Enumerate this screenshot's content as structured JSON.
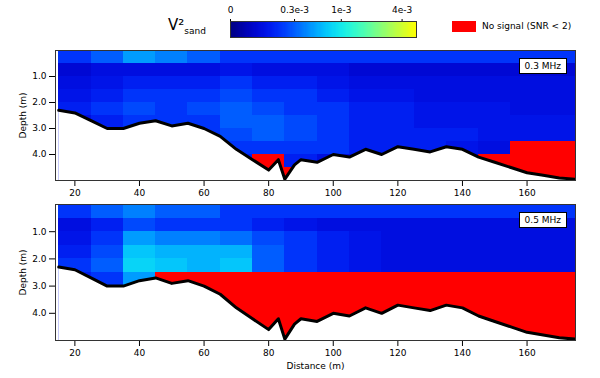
{
  "colorbar": {
    "label": "V²",
    "label_subscript": "sand",
    "range": [
      0,
      0.0055
    ],
    "ticks": [
      0,
      {
        "value": 0.0003,
        "label": "0.3e-3"
      },
      {
        "value": 0.001,
        "label": "1e-3"
      },
      {
        "value": 0.004,
        "label": "4e-3"
      }
    ],
    "colors": [
      "#00007f",
      "#0000ff",
      "#0080ff",
      "#00ffff",
      "#80ff80",
      "#ffff00"
    ]
  },
  "no_signal": {
    "label": "No signal (SNR < 2)",
    "color": "#ff0000"
  },
  "chart_data": [
    {
      "type": "heatmap",
      "annotation": "0.3 MHz",
      "ylabel": "Depth (m)",
      "xlim": [
        14,
        175
      ],
      "xticks": [
        20,
        40,
        60,
        80,
        100,
        120,
        140,
        160
      ],
      "ylim": [
        0,
        5
      ],
      "yticks": [
        1,
        2,
        3,
        4
      ],
      "x_bins": [
        15,
        25,
        35,
        45,
        55,
        65,
        75,
        85,
        95,
        105,
        115,
        125,
        135,
        145,
        155,
        165,
        175
      ],
      "depth_bins": [
        0,
        0.5,
        1,
        1.5,
        2,
        2.5,
        3,
        3.5,
        4,
        4.5,
        5
      ],
      "cells": [
        [
          0.0002,
          0.0003,
          0.0005,
          0.0004,
          0.0003,
          0.0002,
          0.0002,
          0.0002,
          0.0002,
          0.0002,
          0.0002,
          0.0002,
          0.0002,
          0.0002,
          0.0002,
          0.0002
        ],
        [
          8e-05,
          0.0001,
          0.0001,
          0.0001,
          0.0001,
          0.00012,
          0.0001,
          0.0001,
          0.0001,
          8e-05,
          8e-05,
          8e-05,
          8e-05,
          8e-05,
          8e-05,
          8e-05
        ],
        [
          0.0001,
          0.00012,
          0.00015,
          0.00015,
          0.00015,
          0.0002,
          0.00015,
          0.00015,
          0.00012,
          0.0001,
          0.0001,
          0.0001,
          0.0001,
          0.0001,
          0.0001,
          0.0001
        ],
        [
          0.00012,
          0.00015,
          0.0002,
          0.0002,
          0.0002,
          0.00025,
          0.0002,
          0.0002,
          0.00015,
          0.00012,
          0.00012,
          0.0001,
          0.0001,
          0.0001,
          0.0001,
          0.0001
        ],
        [
          0.00015,
          0.0002,
          0.00025,
          0.0002,
          0.00025,
          0.0003,
          0.00025,
          0.0002,
          0.0002,
          0.00015,
          0.00015,
          0.00012,
          0.00012,
          0.00012,
          0.0001,
          0.0001
        ],
        [
          0.0001,
          0.00015,
          0.0002,
          0.0002,
          0.0002,
          0.0003,
          0.0003,
          0.00025,
          0.0002,
          0.00015,
          0.00015,
          0.00012,
          0.00012,
          0.00012,
          0.00012,
          0.00012
        ],
        [
          0.0001,
          0.0001,
          0.0001,
          0.0001,
          0.0002,
          0.00025,
          0.0003,
          0.00025,
          0.0002,
          0.00015,
          0.00015,
          0.00015,
          0.00015,
          0.00012,
          0.00012,
          0.00012
        ],
        [
          0.0001,
          0.0001,
          0.0001,
          0.0001,
          0.0001,
          0.0002,
          0.0002,
          0.0002,
          0.0002,
          0.00015,
          0.00015,
          0.00015,
          0.00012,
          0.0001,
          null,
          null
        ],
        [
          0.0001,
          0.0001,
          0.0001,
          0.0001,
          0.0001,
          0.00015,
          null,
          0.00015,
          0.0001,
          0.0001,
          0.0001,
          0.0001,
          0.0001,
          null,
          null,
          null
        ],
        [
          0.0001,
          0.0001,
          0.0001,
          0.0001,
          0.0001,
          0.0001,
          null,
          null,
          0.0001,
          0.0001,
          0.0001,
          0.0001,
          0.0001,
          null,
          null,
          null
        ]
      ],
      "bed": {
        "x": [
          15,
          20,
          25,
          30,
          35,
          40,
          45,
          50,
          55,
          60,
          65,
          70,
          75,
          80,
          83,
          85,
          88,
          90,
          95,
          100,
          105,
          110,
          115,
          120,
          125,
          130,
          135,
          140,
          145,
          150,
          155,
          160,
          165,
          170,
          175
        ],
        "depth": [
          2.3,
          2.4,
          2.7,
          3.0,
          3.0,
          2.8,
          2.7,
          2.9,
          2.8,
          3.0,
          3.3,
          3.8,
          4.2,
          4.6,
          4.2,
          4.95,
          4.4,
          4.2,
          4.3,
          4.0,
          4.1,
          3.8,
          4.0,
          3.7,
          3.8,
          3.9,
          3.7,
          3.8,
          4.1,
          4.3,
          4.5,
          4.7,
          4.8,
          4.9,
          4.95
        ]
      }
    },
    {
      "type": "heatmap",
      "annotation": "0.5 MHz",
      "xlabel": "Distance (m)",
      "ylabel": "Depth (m)",
      "xlim": [
        14,
        175
      ],
      "xticks": [
        20,
        40,
        60,
        80,
        100,
        120,
        140,
        160
      ],
      "ylim": [
        0,
        5
      ],
      "yticks": [
        1,
        2,
        3,
        4
      ],
      "x_bins": [
        15,
        25,
        35,
        45,
        55,
        65,
        75,
        85,
        95,
        105,
        115,
        125,
        135,
        145,
        155,
        165,
        175
      ],
      "depth_bins": [
        0,
        0.5,
        1,
        1.5,
        2,
        2.5,
        3,
        3.5,
        4,
        4.5,
        5
      ],
      "cells": [
        [
          0.0002,
          0.0003,
          0.0004,
          0.0003,
          0.0003,
          0.0002,
          0.0002,
          0.0002,
          0.0002,
          0.0002,
          0.0002,
          0.0002,
          0.0002,
          0.0002,
          0.0002,
          0.0002
        ],
        [
          0.0001,
          0.00015,
          0.00025,
          0.0002,
          0.0002,
          0.0002,
          0.00015,
          0.00012,
          0.0001,
          0.0001,
          0.0001,
          0.0001,
          0.0001,
          0.0001,
          0.0001,
          0.0001
        ],
        [
          0.00012,
          0.0002,
          0.0005,
          0.0004,
          0.0004,
          0.00035,
          0.00025,
          0.0002,
          0.00015,
          0.00012,
          0.0001,
          0.0001,
          0.0001,
          0.0001,
          0.0001,
          0.0001
        ],
        [
          0.00015,
          0.00025,
          0.0007,
          0.0006,
          0.0006,
          0.0006,
          0.0003,
          0.0002,
          0.00015,
          0.00012,
          0.0001,
          0.0001,
          0.0001,
          0.0001,
          0.0001,
          0.0001
        ],
        [
          0.0002,
          0.0003,
          0.0008,
          0.0007,
          0.0006,
          0.0007,
          0.0003,
          0.0002,
          0.00015,
          0.00012,
          0.0001,
          0.0001,
          0.0001,
          0.0001,
          0.0001,
          0.0001
        ],
        [
          0.00015,
          0.0002,
          0.0005,
          null,
          null,
          null,
          null,
          null,
          null,
          null,
          null,
          null,
          null,
          null,
          null,
          null
        ],
        [
          0.0001,
          0.0001,
          null,
          null,
          null,
          null,
          null,
          null,
          null,
          null,
          null,
          null,
          null,
          null,
          null,
          null
        ],
        [
          0.0001,
          0.0001,
          null,
          null,
          null,
          null,
          null,
          null,
          null,
          null,
          null,
          null,
          null,
          null,
          null,
          null
        ],
        [
          0.0001,
          0.0001,
          null,
          null,
          null,
          null,
          null,
          null,
          null,
          null,
          null,
          null,
          null,
          null,
          null,
          null
        ],
        [
          0.0001,
          0.0001,
          null,
          null,
          null,
          null,
          null,
          null,
          null,
          null,
          null,
          null,
          null,
          null,
          null,
          null
        ]
      ],
      "bed": {
        "x": [
          15,
          20,
          25,
          30,
          35,
          40,
          45,
          50,
          55,
          60,
          65,
          70,
          75,
          80,
          83,
          85,
          88,
          90,
          95,
          100,
          105,
          110,
          115,
          120,
          125,
          130,
          135,
          140,
          145,
          150,
          155,
          160,
          165,
          170,
          175
        ],
        "depth": [
          2.3,
          2.4,
          2.7,
          3.0,
          3.0,
          2.8,
          2.7,
          2.9,
          2.8,
          3.0,
          3.3,
          3.8,
          4.2,
          4.6,
          4.2,
          4.95,
          4.4,
          4.2,
          4.3,
          4.0,
          4.1,
          3.8,
          4.0,
          3.7,
          3.8,
          3.9,
          3.7,
          3.8,
          4.1,
          4.3,
          4.5,
          4.7,
          4.8,
          4.9,
          4.95
        ]
      }
    }
  ]
}
